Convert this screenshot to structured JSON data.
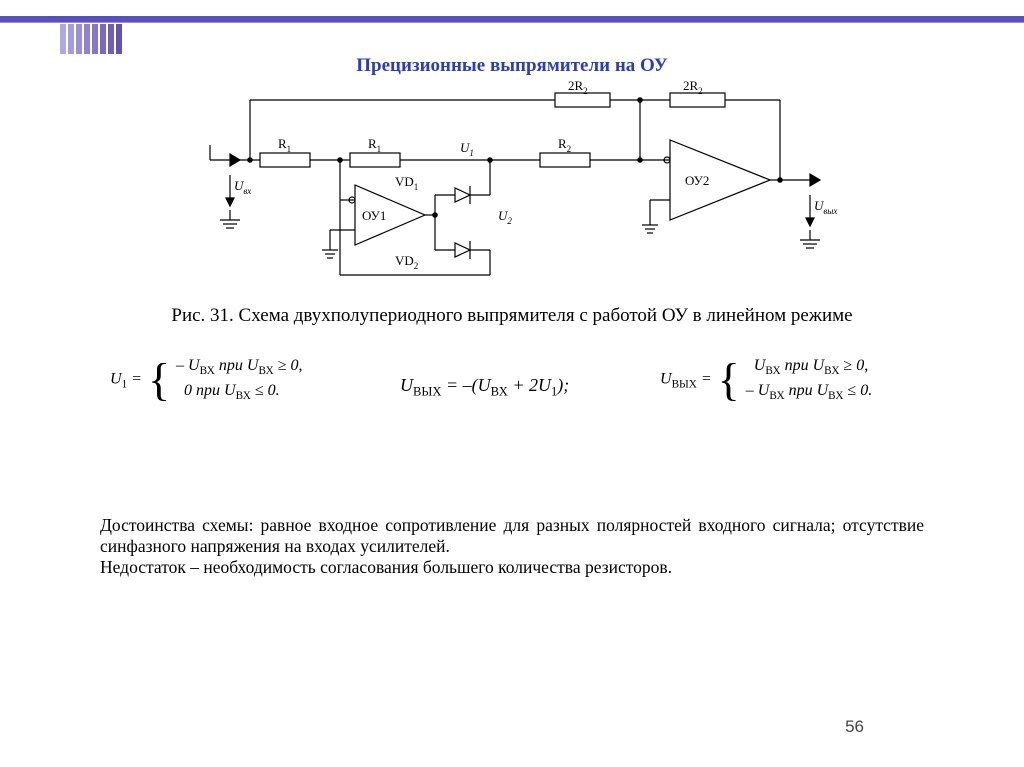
{
  "decor": {
    "topbar_color": "#5a4fbf",
    "stripe_colors": [
      "#b0a8e0",
      "#a59be0",
      "#9a8fd8",
      "#8f82d0",
      "#8476c8",
      "#796ac0",
      "#6e5eb8",
      "#6352b0"
    ]
  },
  "title": "Прецизионные выпрямители на ОУ",
  "schematic": {
    "stroke": "#000",
    "label_color": "#000",
    "comp": {
      "R1a": "R",
      "R1a_sub": "1",
      "R1b": "R",
      "R1b_sub": "1",
      "R2": "R",
      "R2_sub": "2",
      "R2a": "2R",
      "R2a_sub": "2",
      "R2b": "2R",
      "R2b_sub": "2",
      "VD1": "VD",
      "VD1_sub": "1",
      "VD2": "VD",
      "VD2_sub": "2",
      "OA1": "ОУ1",
      "OA2": "ОУ2",
      "Uvx": "U",
      "Uvx_sub": "вх",
      "U1": "U",
      "U1_sub": "1",
      "U2": "U",
      "U2_sub": "2",
      "Uout": "U",
      "Uout_sub": "вых"
    }
  },
  "caption": "Рис. 31. Схема двухполупериодного выпрямителя с работой ОУ в линейном режиме",
  "equations": {
    "u1_lhs": "U",
    "u1_lhs_sub": "1",
    "eq_sign": " = ",
    "neg": "–",
    "u_in": "U",
    "u_in_sub": "ВХ",
    "pri": " при ",
    "ge": " ≥ 0,",
    "le": " ≤ 0.",
    "zero": "0",
    "u_out": "U",
    "u_out_sub": "ВЫХ",
    "mid_formula": " = –(U",
    "mid_inner_sub": "ВХ",
    "mid_tail": " + 2U",
    "mid_u1_sub": "1",
    "mid_close": ");"
  },
  "body": {
    "p1": "Достоинства схемы: равное входное сопротивление для разных полярностей входного сигнала; отсутствие синфазного напряжения на входах усилителей.",
    "p2": "Недостаток – необходимость согласования большего количества резисторов."
  },
  "page_number": "56"
}
